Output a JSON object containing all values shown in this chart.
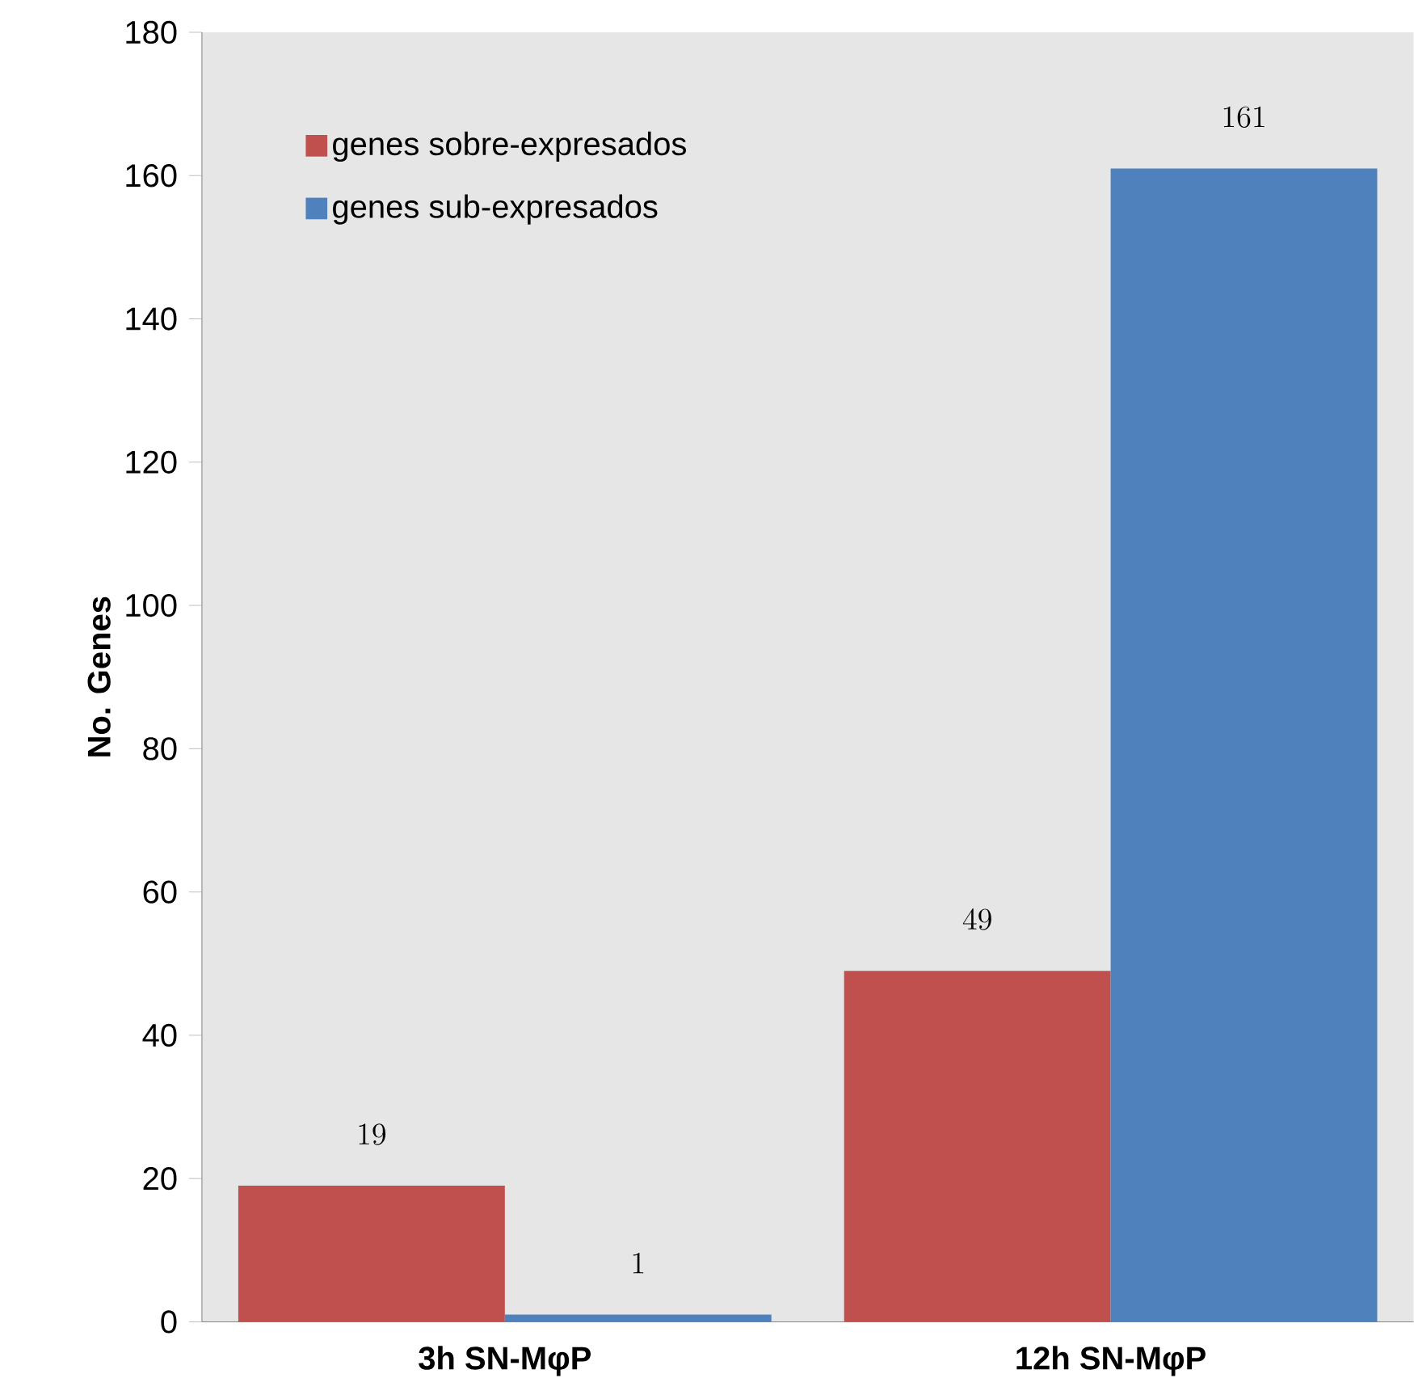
{
  "chart_data": {
    "type": "bar",
    "ylabel": "No. Genes",
    "categories": [
      "3h SN-MφP",
      "12h  SN-MφP"
    ],
    "series": [
      {
        "name": "genes sobre-expresados",
        "color": "#c0504d",
        "values": [
          19,
          49
        ]
      },
      {
        "name": "genes sub-expresados",
        "color": "#4f81bd",
        "values": [
          1,
          161
        ]
      }
    ],
    "ylim": [
      0,
      180
    ],
    "yticks": [
      0,
      20,
      40,
      60,
      80,
      100,
      120,
      140,
      160,
      180
    ],
    "data_labels": true,
    "legend": "top left"
  }
}
